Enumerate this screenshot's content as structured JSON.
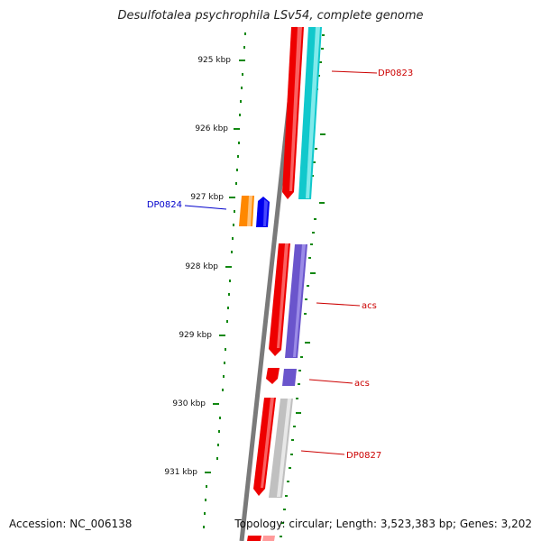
{
  "title": "Desulfotalea psychrophila LSv54, complete genome",
  "footer": {
    "accession": "Accession: NC_006138",
    "topology": "Topology: circular; Length: 3,523,383 bp; Genes: 3,202"
  },
  "ticks": [
    "925 kbp",
    "926 kbp",
    "927 kbp",
    "928 kbp",
    "929 kbp",
    "930 kbp",
    "931 kbp"
  ],
  "gene_labels": [
    {
      "text": "DP0823",
      "color": "#cc0000"
    },
    {
      "text": "DP0824",
      "color": "#0000cc"
    },
    {
      "text": "acs",
      "color": "#cc0000"
    },
    {
      "text": "acs",
      "color": "#cc0000"
    },
    {
      "text": "DP0827",
      "color": "#cc0000"
    }
  ],
  "colors": {
    "backbone": "#7a7a7a",
    "cds_red": "#ee0000",
    "cyan": "#11c8cc",
    "purple": "#6a55cc",
    "grey": "#c0c0c0",
    "orange": "#ff8800",
    "blue": "#0000ee",
    "tick_green": "#118811"
  }
}
